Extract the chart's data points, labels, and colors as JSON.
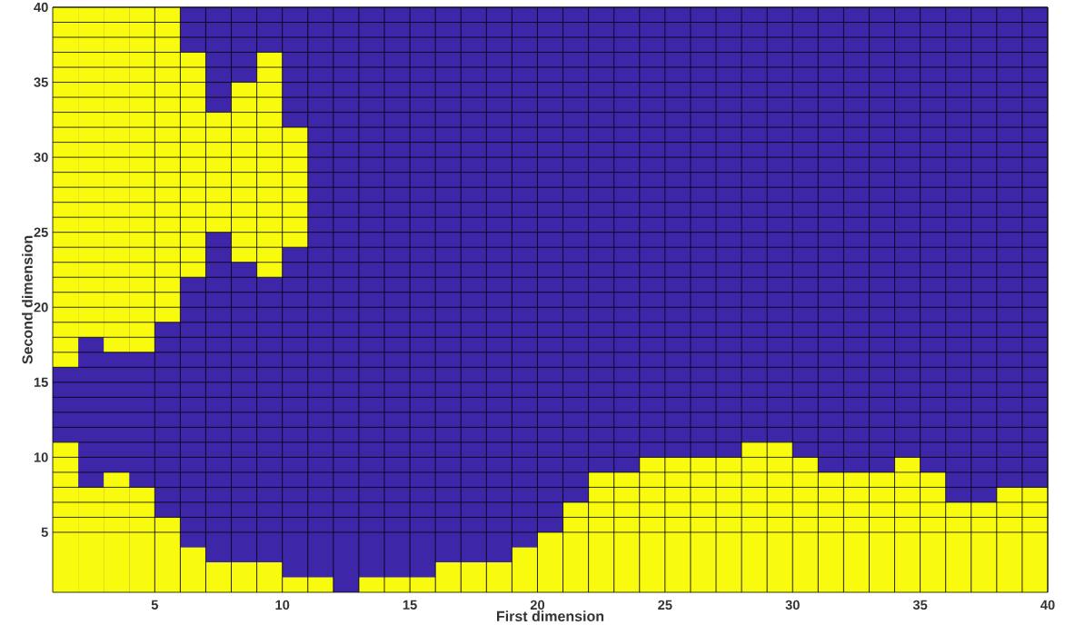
{
  "chart_data": {
    "type": "bar",
    "xlabel": "First dimension",
    "ylabel": "Second dimension",
    "xlim": [
      1,
      40
    ],
    "ylim": [
      1,
      40
    ],
    "xticks": [
      5,
      10,
      15,
      20,
      25,
      30,
      35,
      40
    ],
    "yticks": [
      5,
      10,
      15,
      20,
      25,
      30,
      35,
      40
    ],
    "grid": true,
    "x": [
      1.5,
      2.5,
      3.5,
      4.5,
      5.5,
      6.5,
      7.5,
      8.5,
      9.5,
      10.5,
      11.5,
      12.5,
      13.5,
      14.5,
      15.5,
      16.5,
      17.5,
      18.5,
      19.5,
      20.5,
      21.5,
      22.5,
      23.5,
      24.5,
      25.5,
      26.5,
      27.5,
      28.5,
      29.5,
      30.5,
      31.5,
      32.5,
      33.5,
      34.5,
      35.5,
      36.5,
      37.5,
      38.5,
      39.5
    ],
    "series": [
      {
        "color": "#f9fb0e",
        "values": [
          11,
          8,
          9,
          8,
          6,
          4,
          3,
          3,
          3,
          2,
          2,
          null,
          2,
          2,
          2,
          3,
          3,
          3,
          4,
          5,
          7,
          9,
          9,
          10,
          10,
          10,
          10,
          11,
          11,
          10,
          9,
          9,
          9,
          10,
          9,
          7,
          7,
          8,
          8
        ]
      },
      {
        "color": "#f9fb0e",
        "base": [
          16,
          18,
          17,
          17,
          19,
          22,
          25,
          23,
          22,
          24,
          null,
          null,
          null,
          null,
          null,
          null,
          null,
          null,
          null,
          null,
          null,
          null,
          null,
          null,
          null,
          null,
          null,
          null,
          null,
          null,
          null,
          null,
          null,
          null,
          null,
          null,
          null,
          null,
          null
        ],
        "values": [
          24,
          22,
          23,
          23,
          21,
          15,
          8,
          12,
          15,
          8,
          null,
          null,
          null,
          null,
          null,
          null,
          null,
          null,
          null,
          null,
          null,
          null,
          null,
          null,
          null,
          null,
          null,
          null,
          null,
          null,
          null,
          null,
          null,
          null,
          null,
          null,
          null,
          null,
          null
        ]
      }
    ]
  }
}
